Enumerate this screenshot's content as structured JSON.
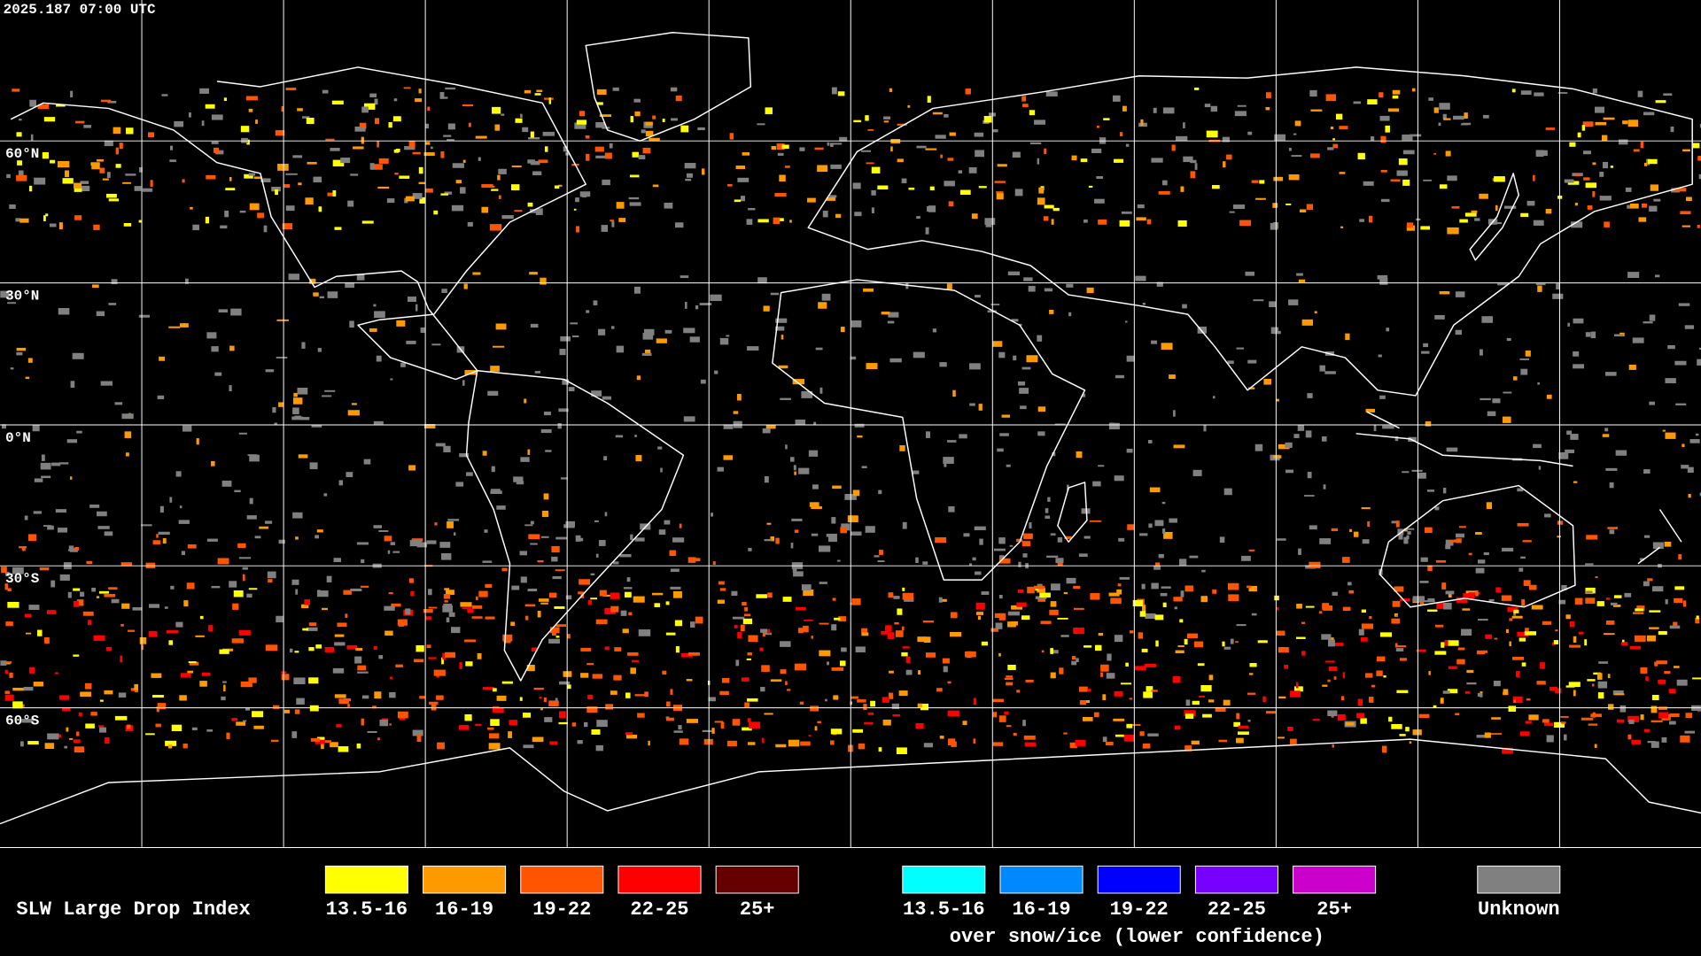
{
  "header": {
    "timestamp": "2025.187 07:00 UTC"
  },
  "map": {
    "latitude_labels": [
      "60°N",
      "30°N",
      "0°N",
      "30°S",
      "60°S"
    ]
  },
  "legend": {
    "title": "SLW Large Drop Index",
    "items": [
      {
        "label": "13.5-16",
        "color": "#ffff00"
      },
      {
        "label": "16-19",
        "color": "#ff9900"
      },
      {
        "label": "19-22",
        "color": "#ff5500"
      },
      {
        "label": "22-25",
        "color": "#ff0000"
      },
      {
        "label": "25+",
        "color": "#660000"
      }
    ],
    "snow_ice_items": [
      {
        "label": "13.5-16",
        "color": "#00ffff"
      },
      {
        "label": "16-19",
        "color": "#0088ff"
      },
      {
        "label": "19-22",
        "color": "#0000ff"
      },
      {
        "label": "22-25",
        "color": "#7700ff"
      },
      {
        "label": "25+",
        "color": "#cc00cc"
      }
    ],
    "snow_ice_caption": "over snow/ice (lower confidence)",
    "unknown": {
      "label": "Unknown",
      "color": "#808080"
    }
  }
}
